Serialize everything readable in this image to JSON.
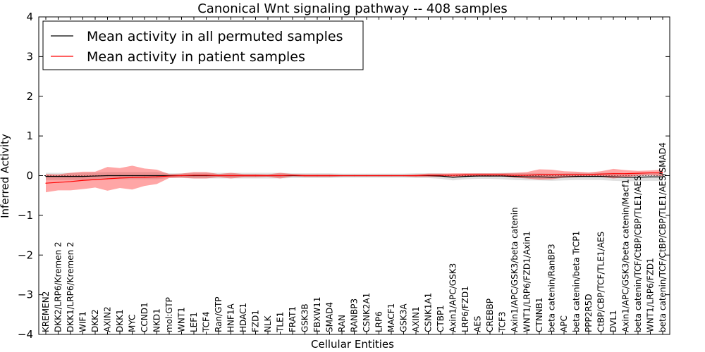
{
  "chart_data": {
    "type": "line",
    "title": "Canonical Wnt signaling pathway -- 408 samples",
    "xlabel": "Cellular Entities",
    "ylabel": "Inferred Activity",
    "ylim": [
      -4,
      4
    ],
    "yticks": [
      "−4",
      "−3",
      "−2",
      "−1",
      "0",
      "1",
      "2",
      "3",
      "4"
    ],
    "legend_position": "top-left",
    "categories": [
      "KREMEN2",
      "DKK2/LRP6/Kremen 2",
      "DKK1/LRP6/Kremen 2",
      "WIF1",
      "DKK2",
      "AXIN2",
      "DKK1",
      "MYC",
      "CCND1",
      "NKD1",
      "mol:GTP",
      "WNT1",
      "LEF1",
      "TCF4",
      "Ran/GTP",
      "HNF1A",
      "HDAC1",
      "FZD1",
      "NLK",
      "TLE1",
      "FRAT1",
      "GSK3B",
      "FBXW11",
      "SMAD4",
      "RAN",
      "RANBP3",
      "CSNK2A1",
      "LRP6",
      "MACF1",
      "GSK3A",
      "AXIN1",
      "CSNK1A1",
      "CTBP1",
      "Axin1/APC/GSK3",
      "LRP6/FZD1",
      "AES",
      "CREBBP",
      "TCF3",
      "Axin1/APC/GSK3/beta catenin",
      "WNT1/LRP6/FZD1/Axin1",
      "CTNNB1",
      "beta catenin/RanBP3",
      "APC",
      "beta catenin/beta TrCP1",
      "PPP2R5D",
      "CtBP/CBP/TCF/TLE1/AES",
      "DVL1",
      "Axin1/APC/GSK3/beta catenin/Macf1",
      "beta catenin/TCF/CtBP/CBP/TLE1/AES",
      "WNT1/LRP6/FZD1",
      "beta catenin/TCF/CtBP/CBP/TLE1/AES/SMAD4"
    ],
    "series": [
      {
        "name": "Mean activity in all permuted samples",
        "color": "#000000",
        "band_color": "#c8c8c8",
        "values": [
          -0.02,
          -0.02,
          -0.02,
          -0.02,
          -0.01,
          0,
          0,
          0,
          0,
          0,
          0,
          0,
          0,
          0,
          0,
          0,
          0,
          0,
          0,
          0,
          0,
          0,
          0,
          0,
          0,
          0,
          0,
          0,
          0,
          0,
          0,
          0,
          -0.01,
          -0.04,
          -0.02,
          -0.01,
          -0.01,
          -0.01,
          -0.02,
          -0.03,
          -0.03,
          -0.04,
          -0.03,
          -0.02,
          -0.02,
          -0.02,
          -0.03,
          -0.04,
          -0.04,
          -0.03,
          -0.03
        ],
        "band": [
          0.09,
          0.09,
          0.09,
          0.09,
          0.09,
          0.09,
          0.09,
          0.09,
          0.09,
          0.09,
          0.06,
          0.06,
          0.07,
          0.07,
          0.07,
          0.07,
          0.07,
          0.07,
          0.07,
          0.07,
          0.06,
          0.06,
          0.06,
          0.06,
          0.05,
          0.05,
          0.05,
          0.05,
          0.05,
          0.05,
          0.06,
          0.06,
          0.07,
          0.08,
          0.07,
          0.07,
          0.07,
          0.08,
          0.09,
          0.09,
          0.09,
          0.09,
          0.09,
          0.09,
          0.09,
          0.09,
          0.1,
          0.1,
          0.1,
          0.1,
          0.1
        ]
      },
      {
        "name": "Mean activity in patient samples",
        "color": "#ff0000",
        "band_color": "#ff0000",
        "values": [
          -0.19,
          -0.17,
          -0.15,
          -0.12,
          -0.1,
          -0.08,
          -0.06,
          -0.05,
          -0.04,
          -0.03,
          -0.01,
          0,
          0.01,
          0.01,
          0,
          0,
          0,
          0,
          0,
          0,
          0.01,
          0,
          0,
          0,
          0,
          0,
          0,
          0,
          0,
          0,
          0,
          0.01,
          0.01,
          0.01,
          0.02,
          0.02,
          0.02,
          0.02,
          0.01,
          0.01,
          0.03,
          0.03,
          0.03,
          0.03,
          0.03,
          0.04,
          0.05,
          0.05,
          0.06,
          0.07,
          0.07
        ],
        "band": [
          0.23,
          0.2,
          0.22,
          0.22,
          0.2,
          0.3,
          0.25,
          0.3,
          0.22,
          0.18,
          0.05,
          0.05,
          0.08,
          0.08,
          0.04,
          0.07,
          0.04,
          0.04,
          0.03,
          0.07,
          0.03,
          0.03,
          0.03,
          0.03,
          0.02,
          0.02,
          0.02,
          0.02,
          0.02,
          0.02,
          0.03,
          0.04,
          0.04,
          0.05,
          0.04,
          0.04,
          0.04,
          0.04,
          0.06,
          0.08,
          0.13,
          0.12,
          0.08,
          0.07,
          0.05,
          0.07,
          0.12,
          0.09,
          0.06,
          0.06,
          0.08
        ]
      }
    ]
  }
}
